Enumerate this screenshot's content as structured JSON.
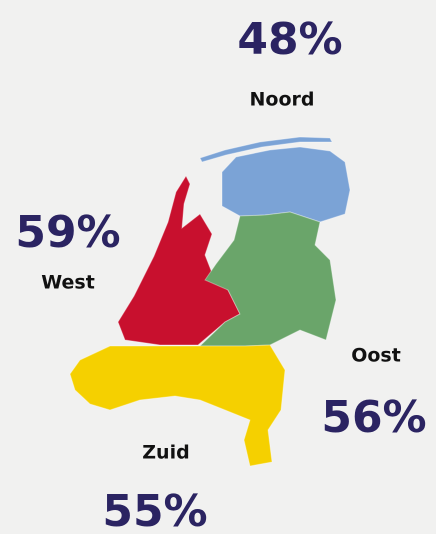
{
  "regions": [
    {
      "name": "Noord",
      "label": "48%"
    },
    {
      "name": "West",
      "label": "59%"
    },
    {
      "name": "Oost",
      "label": "56%"
    },
    {
      "name": "Zuid",
      "label": "55%"
    }
  ]
}
